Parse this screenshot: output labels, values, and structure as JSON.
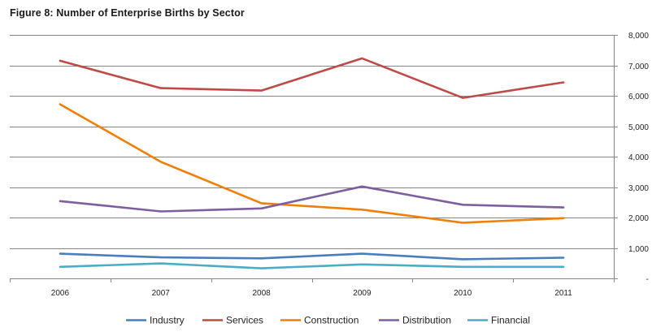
{
  "chart_data": {
    "type": "line",
    "title": "Figure 8: Number of Enterprise Births by Sector",
    "xlabel": "",
    "ylabel": "",
    "x": [
      "2006",
      "2007",
      "2008",
      "2009",
      "2010",
      "2011"
    ],
    "ylim": [
      0,
      8000
    ],
    "y_ticks": [
      0,
      1000,
      2000,
      3000,
      4000,
      5000,
      6000,
      7000,
      8000
    ],
    "y_tick_labels": [
      "-",
      "1,000",
      "2,000",
      "3,000",
      "4,000",
      "5,000",
      "6,000",
      "7,000",
      "8,000"
    ],
    "y_axis_side": "right",
    "grid": "horizontal",
    "legend_position": "bottom",
    "series": [
      {
        "name": "Industry",
        "color": "#4a7ebb",
        "values": [
          810,
          690,
          660,
          810,
          630,
          680
        ]
      },
      {
        "name": "Services",
        "color": "#be4b48",
        "values": [
          7150,
          6250,
          6170,
          7230,
          5930,
          6440
        ]
      },
      {
        "name": "Construction",
        "color": "#f07f09",
        "values": [
          5720,
          3830,
          2470,
          2260,
          1830,
          1980
        ]
      },
      {
        "name": "Distribution",
        "color": "#7d5fa0",
        "values": [
          2540,
          2200,
          2300,
          3020,
          2420,
          2330
        ]
      },
      {
        "name": "Financial",
        "color": "#4bacc6",
        "values": [
          380,
          490,
          330,
          460,
          380,
          380
        ]
      }
    ]
  }
}
